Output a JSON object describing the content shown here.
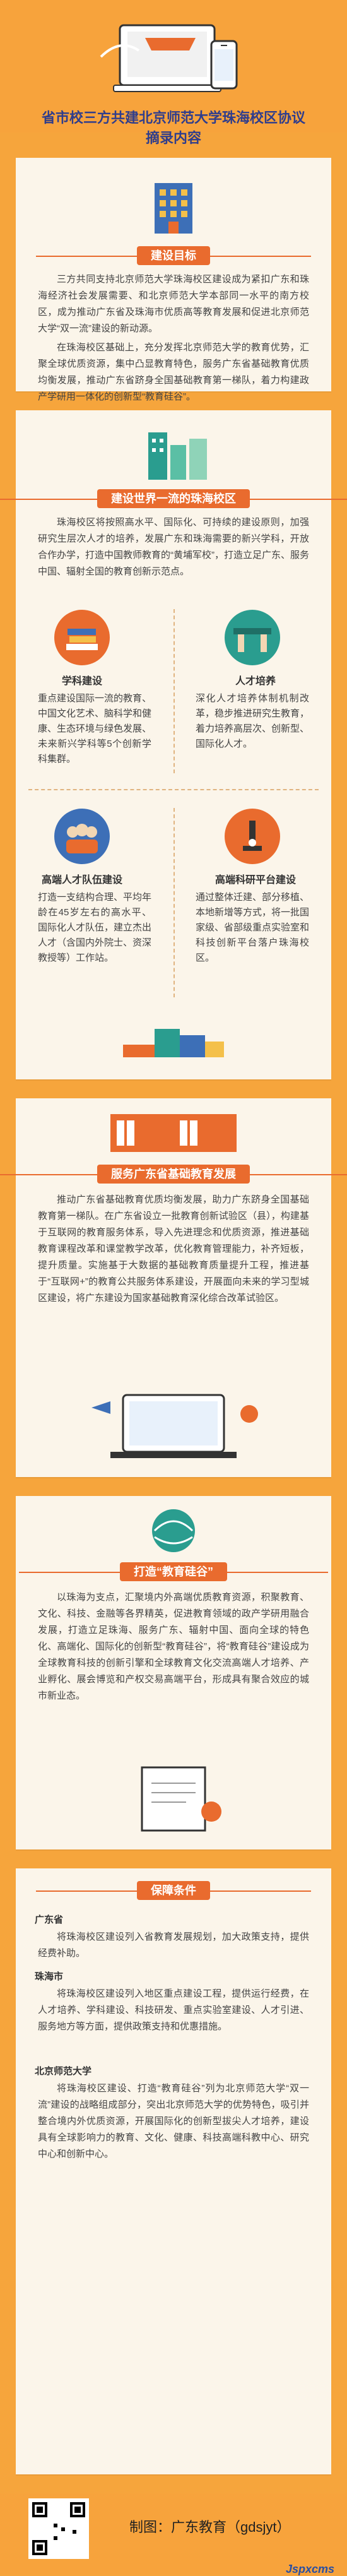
{
  "header": {
    "title_line1": "省市校三方共建北京师范大学珠海校区协议",
    "title_line2": "摘录内容"
  },
  "section1": {
    "pill": "建设目标",
    "p1": "三方共同支持北京师范大学珠海校区建设成为紧扣广东和珠海经济社会发展需要、和北京师范大学本部同一水平的南方校区，成为推动广东省及珠海市优质高等教育发展和促进北京师范大学“双一流”建设的新动源。",
    "p2": "在珠海校区基础上，充分发挥北京师范大学的教育优势，汇聚全球优质资源，集中凸显教育特色，服务广东省基础教育优质均衡发展，推动广东省跻身全国基础教育第一梯队，着力构建政产学研用一体化的创新型“教育硅谷”。"
  },
  "section2": {
    "pill": "建设世界一流的珠海校区",
    "p1": "珠海校区将按照高水平、国际化、可持续的建设原则，加强研究生层次人才的培养，发展广东和珠海需要的新兴学科，开放合作办学，打造中国教师教育的“黄埔军校”，打造立足广东、服务中国、辐射全国的教育创新示范点。",
    "subject_title": "学科建设",
    "subject_text": "重点建设国际一流的教育、中国文化艺术、脑科学和健康、生态环境与绿色发展、未来新兴学科等5个创新学科集群。",
    "talent_title": "人才培养",
    "talent_text": "深化人才培养体制机制改革，稳步推进研究生教育，着力培养高层次、创新型、国际化人才。",
    "team_title": "高端人才队伍建设",
    "team_text": "打造一支结构合理、平均年龄在45岁左右的高水平、国际化人才队伍，建立杰出人才（含国内外院士、资深教授等）工作站。",
    "research_title": "高端科研平台建设",
    "research_text": "通过整体迁建、部分移植、本地新增等方式，将一批国家级、省部级重点实验室和科技创新平台落户珠海校区。"
  },
  "section3": {
    "pill": "服务广东省基础教育发展",
    "p1": "推动广东省基础教育优质均衡发展，助力广东跻身全国基础教育第一梯队。在广东省设立一批教育创新试验区（县），构建基于互联网的教育服务体系，导入先进理念和优质资源，推进基础教育课程改革和课堂教学改革，优化教育管理能力，补齐短板，提升质量。实施基于大数据的基础教育质量提升工程，推进基于“互联网+”的教育公共服务体系建设，开展面向未来的学习型城区建设，将广东建设为国家基础教育深化综合改革试验区。"
  },
  "section4": {
    "pill": "打造“教育硅谷”",
    "p1": "以珠海为支点，汇聚境内外高端优质教育资源，积聚教育、文化、科技、金融等各界精英，促进教育领域的政产学研用融合发展，打造立足珠海、服务广东、辐射中国、面向全球的特色化、高端化、国际化的创新型“教育硅谷”，将“教育硅谷”建设成为全球教育科技的创新引擎和全球教育文化交流高端人才培养、产业孵化、展会博览和产权交易高端平台，形成具有聚合效应的城市新业态。"
  },
  "section5": {
    "pill": "保障条件",
    "gd_label": "广东省",
    "gd_text": "将珠海校区建设列入省教育发展规划，加大政策支持，提供经费补助。",
    "zh_label": "珠海市",
    "zh_text": "将珠海校区建设列入地区重点建设工程，提供运行经费，在人才培养、学科建设、科技研发、重点实验室建设、人才引进、服务地方等方面，提供政策支持和优惠措施。",
    "bnu_label": "北京师范大学",
    "bnu_text": "将珠海校区建设、打造“教育硅谷”列为北京师范大学“双一流”建设的战略组成部分，突出北京师范大学的优势特色，吸引并整合境内外优质资源，开展国际化的创新型拔尖人才培养，建设具有全球影响力的教育、文化、健康、科技高端科教中心、研究中心和创新中心。"
  },
  "footer": {
    "credit": "制图：广东教育（gdsjyt）",
    "watermark": "Jspxcms"
  },
  "colors": {
    "accent": "#e96b2e",
    "title": "#2f3d8c",
    "bg": "#f6a53c"
  }
}
